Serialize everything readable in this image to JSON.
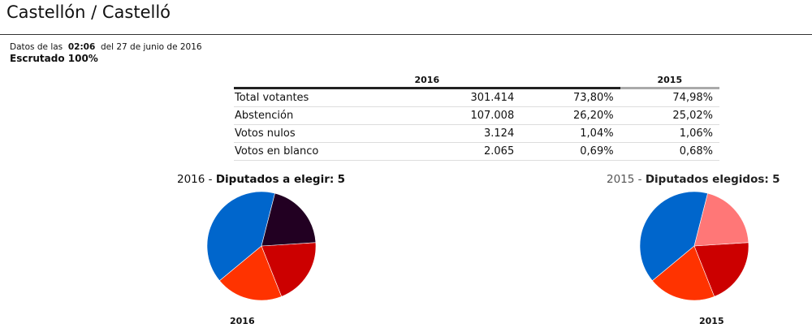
{
  "page": {
    "title": "Castellón / Castelló",
    "date_prefix": "Datos de las",
    "time": "02:06",
    "date_suffix": "del 27 de junio de 2016",
    "scrutiny": "Escrutado 100%"
  },
  "table": {
    "headers": [
      "2016",
      "2015"
    ],
    "rows": [
      {
        "label": "Total votantes",
        "value_2016": "301.414",
        "pct_2016": "73,80%",
        "pct_2015": "74,98%"
      },
      {
        "label": "Abstención",
        "value_2016": "107.008",
        "pct_2016": "26,20%",
        "pct_2015": "25,02%"
      },
      {
        "label": "Votos nulos",
        "value_2016": "3.124",
        "pct_2016": "1,04%",
        "pct_2015": "1,06%"
      },
      {
        "label": "Votos en blanco",
        "value_2016": "2.065",
        "pct_2016": "0,69%",
        "pct_2015": "0,68%"
      }
    ]
  },
  "pies": {
    "p2016": {
      "year": "2016",
      "label": "Diputados a elegir:",
      "seats": "5",
      "caption": "2016"
    },
    "p2015": {
      "year": "2015",
      "label": "Diputados elegidos:",
      "seats": "5",
      "caption": "2015"
    }
  },
  "chart_data": [
    {
      "type": "pie",
      "title": "2016 - Diputados a elegir: 5",
      "values": [
        2,
        1,
        1,
        1
      ],
      "colors": [
        "#0066cc",
        "#ff3300",
        "#cc0000",
        "#220022"
      ]
    },
    {
      "type": "pie",
      "title": "2015 - Diputados elegidos: 5",
      "values": [
        2,
        1,
        1,
        1
      ],
      "colors": [
        "#0066cc",
        "#ff3300",
        "#cc0000",
        "#ff7777"
      ]
    }
  ]
}
